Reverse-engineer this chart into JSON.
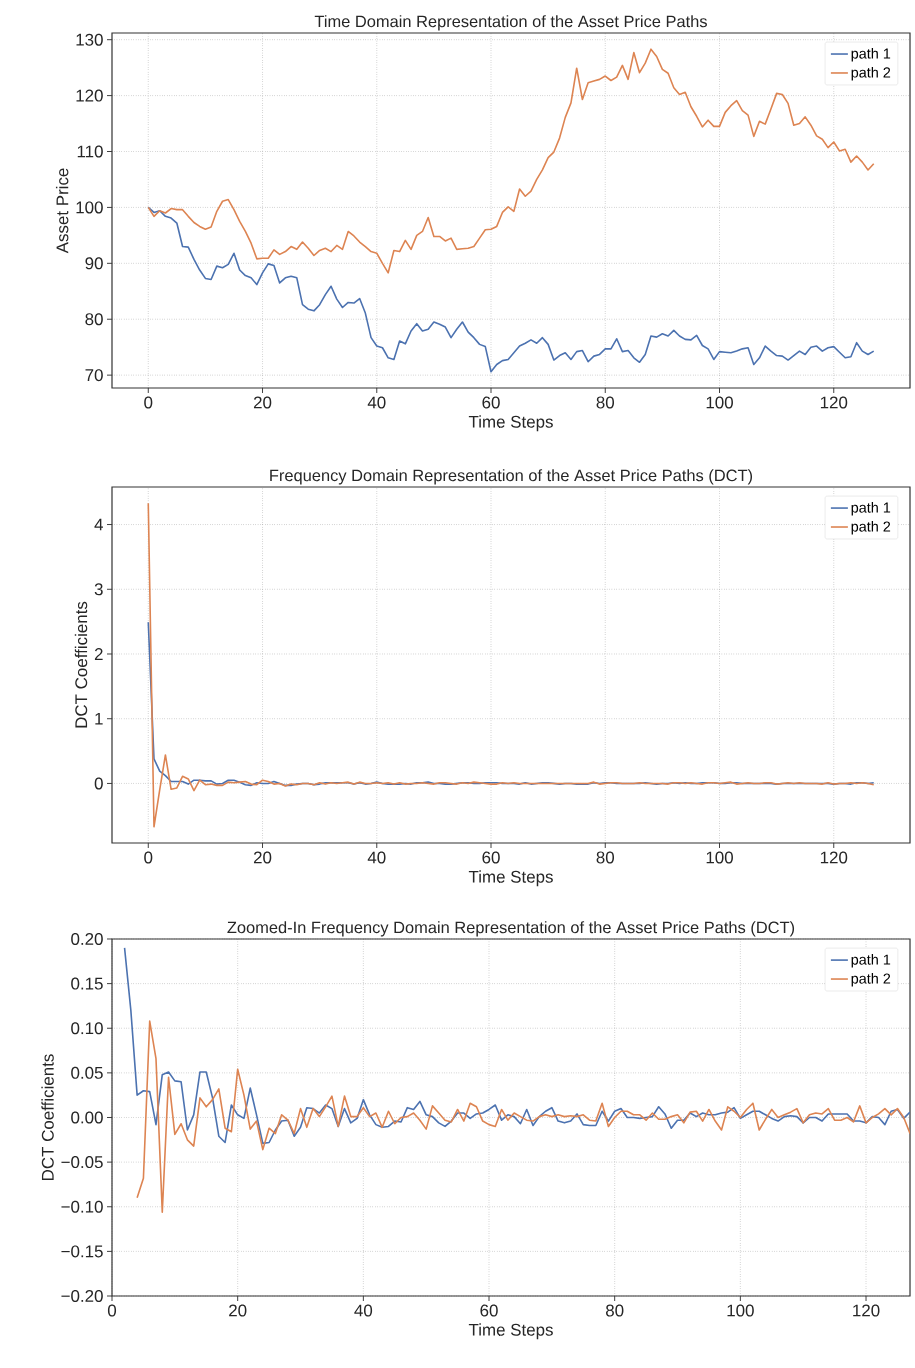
{
  "chart_data": [
    {
      "type": "line",
      "title": "Time Domain Representation of the Asset Price Paths",
      "xlabel": "Time Steps",
      "ylabel": "Asset Price",
      "x": [
        0,
        1,
        2,
        3,
        4,
        5,
        6,
        7,
        8,
        9,
        10,
        11,
        12,
        13,
        14,
        15,
        16,
        17,
        18,
        19,
        20,
        21,
        22,
        23,
        24,
        25,
        26,
        27,
        28,
        29,
        30,
        31,
        32,
        33,
        34,
        35,
        36,
        37,
        38,
        39,
        40,
        41,
        42,
        43,
        44,
        45,
        46,
        47,
        48,
        49,
        50,
        51,
        52,
        53,
        54,
        55,
        56,
        57,
        58,
        59,
        60,
        61,
        62,
        63,
        64,
        65,
        66,
        67,
        68,
        69,
        70,
        71,
        72,
        73,
        74,
        75,
        76,
        77,
        78,
        79,
        80,
        81,
        82,
        83,
        84,
        85,
        86,
        87,
        88,
        89,
        90,
        91,
        92,
        93,
        94,
        95,
        96,
        97,
        98,
        99,
        100,
        101,
        102,
        103,
        104,
        105,
        106,
        107,
        108,
        109,
        110,
        111,
        112,
        113,
        114,
        115,
        116,
        117,
        118,
        119,
        120,
        121,
        122,
        123,
        124,
        125,
        126,
        127
      ],
      "series": [
        {
          "name": "path 1",
          "color": "#4c72b0",
          "values": [
            100,
            99.1,
            99.4,
            98.4,
            98.1,
            97.2,
            93,
            92.9,
            90.7,
            88.8,
            87.3,
            87.1,
            89.5,
            89.2,
            89.8,
            91.8,
            88.8,
            87.8,
            87.4,
            86.2,
            88.3,
            89.9,
            89.6,
            86.5,
            87.4,
            87.7,
            87.4,
            82.6,
            81.8,
            81.5,
            82.6,
            84.4,
            85.9,
            83.6,
            82.1,
            83,
            82.9,
            83.7,
            81.1,
            76.7,
            75.2,
            74.9,
            73.1,
            72.8,
            76.1,
            75.6,
            77.9,
            79.2,
            77.9,
            78.2,
            79.5,
            79.1,
            78.6,
            76.7,
            78.2,
            79.5,
            77.7,
            76.7,
            75.5,
            75.1,
            70.6,
            71.9,
            72.6,
            72.8,
            74,
            75.2,
            75.7,
            76.3,
            75.7,
            76.7,
            75.5,
            72.7,
            73.5,
            74,
            72.8,
            74.2,
            74.4,
            72.4,
            73.4,
            73.7,
            74.7,
            74.7,
            76.5,
            74.2,
            74.4,
            73.1,
            72.3,
            73.7,
            77,
            76.8,
            77.4,
            77,
            78,
            77,
            76.4,
            76.3,
            77.1,
            75.3,
            74.7,
            72.8,
            74.2,
            74.1,
            74,
            74.3,
            74.7,
            74.9,
            71.9,
            73.1,
            75.2,
            74.3,
            73.5,
            73.4,
            72.7,
            73.5,
            74.3,
            73.7,
            75,
            75.2,
            74.3,
            74.9,
            75.1,
            74.1,
            73.1,
            73.3,
            75.8,
            74.3,
            73.7,
            74.3
          ]
        },
        {
          "name": "path 2",
          "color": "#dd8452",
          "values": [
            100,
            98.4,
            99.4,
            99,
            99.8,
            99.6,
            99.6,
            98.4,
            97.3,
            96.6,
            96.1,
            96.5,
            99.3,
            101.1,
            101.4,
            99.6,
            97.5,
            95.7,
            93.6,
            90.8,
            90.9,
            90.9,
            92.4,
            91.6,
            92.1,
            93,
            92.5,
            93.8,
            92.7,
            91.4,
            92.3,
            92.7,
            92.1,
            93.2,
            92.5,
            95.7,
            94.9,
            93.8,
            93,
            92.1,
            91.8,
            90,
            88.3,
            92.3,
            92.1,
            94.1,
            92.5,
            95,
            95.7,
            98.2,
            94.8,
            94.8,
            94,
            94.5,
            92.5,
            92.6,
            92.7,
            93,
            94.5,
            96,
            96.1,
            96.6,
            99.1,
            100.1,
            99.3,
            103.3,
            102,
            102.9,
            105,
            106.7,
            108.9,
            109.9,
            112.4,
            116.1,
            118.7,
            124.9,
            119.3,
            122.3,
            122.6,
            122.9,
            123.5,
            122.7,
            123.3,
            125.4,
            122.9,
            127.7,
            124.1,
            125.8,
            128.3,
            127,
            124.7,
            124,
            121.4,
            120.2,
            120.6,
            118,
            116.3,
            114.4,
            115.6,
            114.5,
            114.5,
            117,
            118.2,
            119.1,
            117.3,
            116.5,
            112.7,
            115.4,
            114.9,
            117.6,
            120.4,
            120.2,
            118.6,
            114.7,
            115,
            116.2,
            114.7,
            112.8,
            112.2,
            110.7,
            111.7,
            110.1,
            110.4,
            108.1,
            109.2,
            108.1,
            106.7,
            107.8
          ]
        }
      ],
      "xlim": [
        -6.35,
        133.35
      ],
      "ylim": [
        67.7,
        131.2
      ],
      "xticks": [
        0,
        20,
        40,
        60,
        80,
        100,
        120
      ],
      "yticks": [
        70,
        80,
        90,
        100,
        110,
        120,
        130
      ],
      "grid": true,
      "legend": "top right"
    },
    {
      "type": "line",
      "title": "Frequency Domain Representation of the Asset Price Paths (DCT)",
      "xlabel": "Time Steps",
      "ylabel": "DCT Coefficients",
      "x": [
        0,
        1,
        2,
        3,
        4,
        5,
        6,
        7,
        8,
        9,
        10,
        11,
        12,
        13,
        14,
        15,
        16,
        17,
        18,
        19,
        20,
        21,
        22,
        23,
        24,
        25,
        26,
        27,
        28,
        29,
        30,
        31,
        32,
        33,
        34,
        35,
        36,
        37,
        38,
        39,
        40,
        41,
        42,
        43,
        44,
        45,
        46,
        47,
        48,
        49,
        50,
        51,
        52,
        53,
        54,
        55,
        56,
        57,
        58,
        59,
        60,
        61,
        62,
        63,
        64,
        65,
        66,
        67,
        68,
        69,
        70,
        71,
        72,
        73,
        74,
        75,
        76,
        77,
        78,
        79,
        80,
        81,
        82,
        83,
        84,
        85,
        86,
        87,
        88,
        89,
        90,
        91,
        92,
        93,
        94,
        95,
        96,
        97,
        98,
        99,
        100,
        101,
        102,
        103,
        104,
        105,
        106,
        107,
        108,
        109,
        110,
        111,
        112,
        113,
        114,
        115,
        116,
        117,
        118,
        119,
        120,
        121,
        122,
        123,
        124,
        125,
        126,
        127
      ],
      "series": [
        {
          "name": "path 1",
          "color": "#4c72b0",
          "values": [
            2.49,
            0.38,
            0.19,
            0.12,
            0.03,
            0.03,
            0.03,
            -0.01,
            0.05,
            0.05,
            0.04,
            0.04,
            -0.01,
            0,
            0.05,
            0.05,
            0.02,
            -0.02,
            -0.03,
            0.01,
            0,
            0,
            0.03,
            0,
            -0.03,
            -0.03,
            -0.01,
            0,
            0,
            -0.02,
            -0.01,
            0.01,
            0.01,
            0.01,
            0.01,
            0.01,
            -0.01,
            0.01,
            -0.01,
            0,
            0.02,
            0,
            -0.01,
            -0.01,
            -0.01,
            0,
            -0.01,
            0.01,
            0.01,
            0.02,
            0,
            0,
            -0.01,
            -0.01,
            0,
            0.01,
            0.01,
            0,
            0,
            0.01,
            0.01,
            0.01,
            0,
            0,
            0,
            -0.01,
            0.01,
            -0.01,
            0,
            0.01,
            0.01,
            0,
            -0.01,
            0,
            0,
            -0.01,
            -0.01,
            -0.01,
            0.01,
            0,
            0.01,
            0.01,
            0,
            0,
            0,
            0,
            0,
            0.01,
            0,
            -0.01,
            0,
            0,
            0.01,
            0,
            0.01,
            0,
            0,
            0.01,
            0.01,
            0.01,
            0,
            0,
            0.01,
            0.01,
            0,
            0,
            0,
            0,
            0,
            0,
            -0.01,
            0,
            0,
            0,
            0,
            0,
            0,
            0,
            0,
            0,
            -0.01,
            0,
            0,
            -0.01,
            0.01,
            0.01,
            0,
            0.01
          ]
        },
        {
          "name": "path 2",
          "color": "#dd8452",
          "values": [
            4.33,
            -0.67,
            -0.1,
            0.44,
            -0.09,
            -0.07,
            0.11,
            0.07,
            -0.11,
            0.05,
            -0.02,
            -0.01,
            -0.03,
            -0.03,
            0.02,
            0.01,
            0.02,
            0.03,
            -0.01,
            -0.02,
            0.05,
            0.03,
            -0.01,
            0,
            -0.04,
            -0.01,
            -0.02,
            0,
            0,
            -0.02,
            0.01,
            -0.01,
            0.01,
            0,
            0.01,
            0.02,
            -0.01,
            0.02,
            0,
            0,
            0.01,
            0,
            0.01,
            -0.01,
            0.01,
            -0.01,
            0,
            0,
            0.01,
            0,
            -0.01,
            0.01,
            0.01,
            0,
            -0.01,
            0.01,
            0,
            0.02,
            0.01,
            0,
            -0.01,
            -0.01,
            0.01,
            0,
            0.01,
            0,
            0,
            0,
            0,
            0,
            0,
            0,
            0,
            0,
            0,
            0,
            0,
            0,
            0.02,
            -0.01,
            0,
            0.01,
            0.01,
            0,
            0,
            0,
            0.01,
            0,
            0,
            0,
            0,
            -0.01,
            0.01,
            0.01,
            0,
            0.01,
            0,
            -0.01,
            0.01,
            0.01,
            0,
            0.01,
            0.02,
            -0.01,
            0,
            0.01,
            0,
            0,
            0.01,
            0.01,
            -0.01,
            0,
            0.01,
            0,
            0.01,
            0,
            0,
            0,
            -0.01,
            0.01,
            -0.01,
            0,
            0,
            0.01,
            0,
            0.01,
            0,
            -0.02
          ]
        }
      ],
      "xlim": [
        -6.35,
        133.35
      ],
      "ylim": [
        -0.92,
        4.58
      ],
      "xticks": [
        0,
        20,
        40,
        60,
        80,
        100,
        120
      ],
      "yticks": [
        0,
        1,
        2,
        3,
        4
      ],
      "grid": true,
      "legend": "top right"
    },
    {
      "type": "line",
      "title": "Zoomed-In Frequency Domain Representation of the Asset Price Paths (DCT)",
      "xlabel": "Time Steps",
      "ylabel": "DCT Coefficients",
      "x": [
        2,
        3,
        4,
        5,
        6,
        7,
        8,
        9,
        10,
        11,
        12,
        13,
        14,
        15,
        16,
        17,
        18,
        19,
        20,
        21,
        22,
        23,
        24,
        25,
        26,
        27,
        28,
        29,
        30,
        31,
        32,
        33,
        34,
        35,
        36,
        37,
        38,
        39,
        40,
        41,
        42,
        43,
        44,
        45,
        46,
        47,
        48,
        49,
        50,
        51,
        52,
        53,
        54,
        55,
        56,
        57,
        58,
        59,
        60,
        61,
        62,
        63,
        64,
        65,
        66,
        67,
        68,
        69,
        70,
        71,
        72,
        73,
        74,
        75,
        76,
        77,
        78,
        79,
        80,
        81,
        82,
        83,
        84,
        85,
        86,
        87,
        88,
        89,
        90,
        91,
        92,
        93,
        94,
        95,
        96,
        97,
        98,
        99,
        100,
        101,
        102,
        103,
        104,
        105,
        106,
        107,
        108,
        109,
        110,
        111,
        112,
        113,
        114,
        115,
        116,
        117,
        118,
        119,
        120,
        121,
        122,
        123,
        124,
        125,
        126,
        127
      ],
      "series": [
        {
          "name": "path 1",
          "color": "#4c72b0",
          "values": [
            0.19,
            0.12,
            0.025,
            0.03,
            0.029,
            -0.008,
            0.048,
            0.051,
            0.041,
            0.04,
            -0.014,
            0.003,
            0.051,
            0.051,
            0.022,
            -0.021,
            -0.028,
            0.014,
            0.003,
            -0.001,
            0.033,
            0.003,
            -0.029,
            -0.028,
            -0.014,
            -0.004,
            -0.003,
            -0.021,
            -0.011,
            0.011,
            0.01,
            0.005,
            0.014,
            0.01,
            -0.01,
            0.01,
            -0.006,
            -0.001,
            0.02,
            0.003,
            -0.008,
            -0.011,
            -0.01,
            -0.004,
            -0.005,
            0.011,
            0.009,
            0.018,
            0.003,
            0.001,
            -0.006,
            -0.01,
            -0.004,
            0.005,
            0.005,
            -0.001,
            0.004,
            0.005,
            0.009,
            0.014,
            -0.003,
            0.003,
            0.001,
            -0.007,
            0.009,
            -0.009,
            0.001,
            0.007,
            0.011,
            -0.004,
            -0.006,
            -0.004,
            0.004,
            -0.008,
            -0.009,
            -0.009,
            0.007,
            -0.004,
            0.007,
            0.01,
            0,
            0,
            -0.001,
            0,
            0.001,
            0.012,
            0.004,
            -0.012,
            -0.003,
            -0.003,
            0.005,
            0.001,
            0.005,
            0.003,
            0.003,
            0.005,
            0.006,
            0.011,
            -0.001,
            0.003,
            0.007,
            0.007,
            0.003,
            -0.001,
            -0.004,
            0.001,
            0.002,
            0.001,
            -0.006,
            0,
            0,
            -0.004,
            0.004,
            0.004,
            0.004,
            0.004,
            -0.004,
            -0.004,
            -0.006,
            0.001,
            0,
            -0.008,
            0.007,
            0.009,
            -0.001,
            0.006
          ]
        },
        {
          "name": "path 2",
          "color": "#dd8452",
          "values": [
            null,
            null,
            -0.09,
            -0.068,
            0.108,
            0.066,
            -0.106,
            0.045,
            -0.019,
            -0.007,
            -0.025,
            -0.032,
            0.022,
            0.012,
            0.02,
            0.032,
            -0.012,
            -0.016,
            0.054,
            0.025,
            -0.013,
            -0.004,
            -0.036,
            -0.012,
            -0.018,
            0.003,
            -0.003,
            -0.018,
            0.01,
            -0.011,
            0.01,
            0.001,
            0.012,
            0.024,
            -0.01,
            0.024,
            0.001,
            0.001,
            0.011,
            0.001,
            0.005,
            -0.011,
            0.007,
            -0.007,
            0,
            0.001,
            0.005,
            -0.003,
            -0.013,
            0.013,
            0.005,
            -0.003,
            -0.005,
            0.009,
            -0.004,
            0.016,
            0.012,
            -0.004,
            -0.008,
            -0.01,
            0.009,
            -0.003,
            0.005,
            0.001,
            -0.003,
            -0.004,
            0.001,
            0.003,
            0.001,
            0.003,
            0.001,
            0.002,
            0.001,
            0.003,
            -0.003,
            -0.004,
            0.016,
            -0.01,
            0,
            0.007,
            0.007,
            0.003,
            0.003,
            -0.003,
            0.005,
            -0.002,
            -0.002,
            0.001,
            0.003,
            -0.006,
            0.006,
            0.007,
            -0.004,
            0.009,
            -0.004,
            -0.014,
            0.012,
            0.007,
            0,
            0.009,
            0.016,
            -0.014,
            -0.002,
            0.009,
            0,
            0.003,
            0.006,
            0.01,
            -0.006,
            0.003,
            0.005,
            0.004,
            0.01,
            -0.003,
            -0.003,
            0,
            -0.005,
            0.013,
            -0.006,
            0,
            0.004,
            0.01,
            0.003,
            0.01,
            0,
            -0.018
          ]
        }
      ],
      "xlim": [
        0,
        127
      ],
      "ylim": [
        -0.2,
        0.2
      ],
      "xticks": [
        0,
        20,
        40,
        60,
        80,
        100,
        120
      ],
      "yticks": [
        {
          "value": -0.2,
          "label": "−0.20"
        },
        {
          "value": -0.15,
          "label": "−0.15"
        },
        {
          "value": -0.1,
          "label": "−0.10"
        },
        {
          "value": -0.05,
          "label": "−0.05"
        },
        {
          "value": 0,
          "label": "0.00"
        },
        {
          "value": 0.05,
          "label": "0.05"
        },
        {
          "value": 0.1,
          "label": "0.10"
        },
        {
          "value": 0.15,
          "label": "0.15"
        },
        {
          "value": 0.2,
          "label": "0.20"
        }
      ],
      "grid": true,
      "legend": "top right"
    }
  ]
}
